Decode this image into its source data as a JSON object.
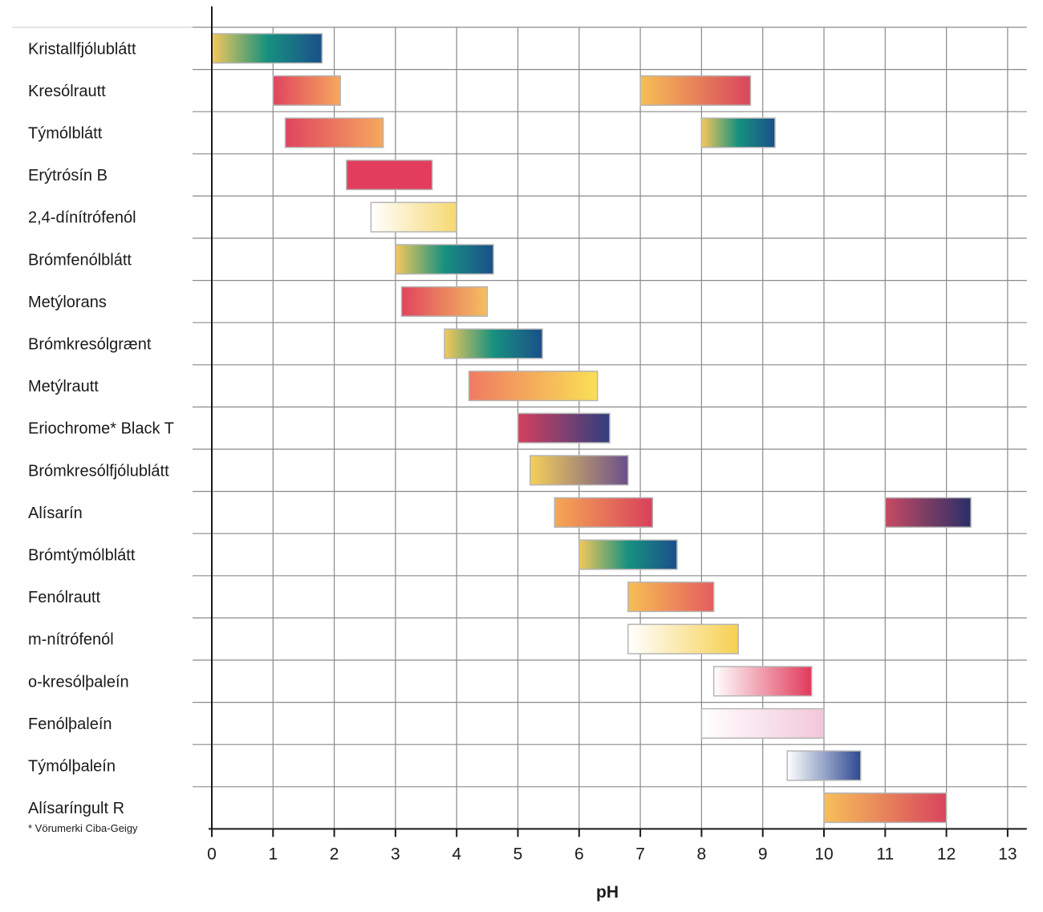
{
  "chart_data": {
    "type": "bar",
    "subtype": "range",
    "xlabel": "pH",
    "xlim": [
      0,
      13
    ],
    "xticks": [
      "0",
      "1",
      "2",
      "3",
      "4",
      "5",
      "6",
      "7",
      "8",
      "9",
      "10",
      "11",
      "12",
      "13"
    ],
    "grid": true,
    "footnote": "* Vörumerki Ciba-Geigy",
    "categories": [
      "Kristallfjólublátt",
      "Kresólrautt",
      "Týmólblátt",
      "Erýtrósín B",
      "2,4-dínítrófenól",
      "Brómfenólblátt",
      "Metýlorans",
      "Brómkresólgrænt",
      "Metýlrautt",
      "Eriochrome* Black T",
      "Brómkresólfjólublátt",
      "Alísarín",
      "Brómtýmólblátt",
      "Fenólrautt",
      "m-nítrófenól",
      "o-kresólþaleín",
      "Fenólþaleín",
      "Týmólþaleín",
      "Alísaríngult R"
    ],
    "ranges": [
      {
        "indicator": "Kristallfjólublátt",
        "start": 0.0,
        "end": 1.8,
        "colors": [
          "#f5c85a",
          "#17917f",
          "#1b4f8a"
        ]
      },
      {
        "indicator": "Kresólrautt",
        "start": 1.0,
        "end": 2.1,
        "colors": [
          "#e0445e",
          "#f5a85e"
        ]
      },
      {
        "indicator": "Kresólrautt",
        "start": 7.0,
        "end": 8.8,
        "colors": [
          "#f7bf55",
          "#d8455e"
        ]
      },
      {
        "indicator": "Týmólblátt",
        "start": 1.2,
        "end": 2.8,
        "colors": [
          "#e0445e",
          "#f5a85e"
        ]
      },
      {
        "indicator": "Týmólblátt",
        "start": 8.0,
        "end": 9.2,
        "colors": [
          "#f5c85a",
          "#17917f",
          "#1b4f8a"
        ]
      },
      {
        "indicator": "Erýtrósín B",
        "start": 2.2,
        "end": 3.6,
        "colors": [
          "#e23d5c",
          "#e23d5c"
        ]
      },
      {
        "indicator": "2,4-dínítrófenól",
        "start": 2.6,
        "end": 4.0,
        "colors": [
          "#ffffff",
          "#f6d870"
        ]
      },
      {
        "indicator": "Brómfenólblátt",
        "start": 3.0,
        "end": 4.6,
        "colors": [
          "#f5c85a",
          "#17917f",
          "#1b4f8a"
        ]
      },
      {
        "indicator": "Metýlorans",
        "start": 3.1,
        "end": 4.5,
        "colors": [
          "#e0445e",
          "#f5c060"
        ]
      },
      {
        "indicator": "Brómkresólgrænt",
        "start": 3.8,
        "end": 5.4,
        "colors": [
          "#f5c85a",
          "#17917f",
          "#1b4f8a"
        ]
      },
      {
        "indicator": "Metýlrautt",
        "start": 4.2,
        "end": 6.3,
        "colors": [
          "#f07a62",
          "#fae055"
        ]
      },
      {
        "indicator": "Eriochrome* Black T",
        "start": 5.0,
        "end": 6.5,
        "colors": [
          "#d5405e",
          "#2f3f7f"
        ]
      },
      {
        "indicator": "Brómkresólfjólublátt",
        "start": 5.2,
        "end": 6.8,
        "colors": [
          "#f5d05a",
          "#6a4f8a"
        ]
      },
      {
        "indicator": "Alísarín",
        "start": 5.6,
        "end": 7.2,
        "colors": [
          "#f5a855",
          "#d8405c"
        ]
      },
      {
        "indicator": "Alísarín",
        "start": 11.0,
        "end": 12.4,
        "colors": [
          "#c84a62",
          "#2a2f68"
        ]
      },
      {
        "indicator": "Brómtýmólblátt",
        "start": 6.0,
        "end": 7.6,
        "colors": [
          "#f5c85a",
          "#17917f",
          "#1b4f8a"
        ]
      },
      {
        "indicator": "Fenólrautt",
        "start": 6.8,
        "end": 8.2,
        "colors": [
          "#f7bf55",
          "#e55c5e"
        ]
      },
      {
        "indicator": "m-nítrófenól",
        "start": 6.8,
        "end": 8.6,
        "colors": [
          "#ffffff",
          "#f6d050"
        ]
      },
      {
        "indicator": "o-kresólþaleín",
        "start": 8.2,
        "end": 9.8,
        "colors": [
          "#ffffff",
          "#e03a5a"
        ]
      },
      {
        "indicator": "Fenólþaleín",
        "start": 8.0,
        "end": 10.0,
        "colors": [
          "#ffffff",
          "#f2c7da"
        ]
      },
      {
        "indicator": "Týmólþaleín",
        "start": 9.4,
        "end": 10.6,
        "colors": [
          "#ffffff",
          "#2f4a92"
        ]
      },
      {
        "indicator": "Alísaríngult R",
        "start": 10.0,
        "end": 12.0,
        "colors": [
          "#f7c05a",
          "#d8445c"
        ]
      }
    ]
  }
}
